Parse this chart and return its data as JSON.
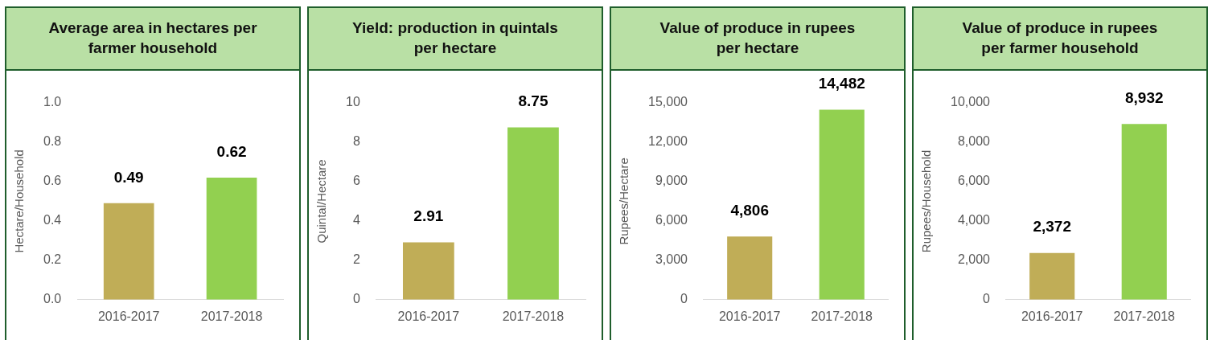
{
  "chart_data": [
    {
      "type": "bar",
      "title": "Average area in hectares per farmer household",
      "ylabel": "Hectare/Household",
      "categories": [
        "2016-2017",
        "2017-2018"
      ],
      "values": [
        0.49,
        0.62
      ],
      "value_labels": [
        "0.49",
        "0.62"
      ],
      "colors": [
        "#c0ad57",
        "#92d050"
      ],
      "ylim": [
        0,
        1
      ],
      "yticks": [
        {
          "value": 0,
          "label": "0.0"
        },
        {
          "value": 0.2,
          "label": "0.2"
        },
        {
          "value": 0.4,
          "label": "0.4"
        },
        {
          "value": 0.6,
          "label": "0.6"
        },
        {
          "value": 0.8,
          "label": "0.8"
        },
        {
          "value": 1,
          "label": "1.0"
        }
      ]
    },
    {
      "type": "bar",
      "title": "Yield: production in quintals per hectare",
      "ylabel": "Quintal/Hectare",
      "categories": [
        "2016-2017",
        "2017-2018"
      ],
      "values": [
        2.91,
        8.75
      ],
      "value_labels": [
        "2.91",
        "8.75"
      ],
      "colors": [
        "#c0ad57",
        "#92d050"
      ],
      "ylim": [
        0,
        10
      ],
      "yticks": [
        0,
        2,
        4,
        6,
        8,
        10
      ]
    },
    {
      "type": "bar",
      "title": "Value of produce in rupees per hectare",
      "ylabel": "Rupees/Hectare",
      "categories": [
        "2016-2017",
        "2017-2018"
      ],
      "values": [
        4806,
        14482
      ],
      "value_labels": [
        "4,806",
        "14,482"
      ],
      "colors": [
        "#c0ad57",
        "#92d050"
      ],
      "ylim": [
        0,
        15000
      ],
      "yticks": [
        0,
        {
          "value": 3000,
          "label": "3,000"
        },
        {
          "value": 6000,
          "label": "6,000"
        },
        {
          "value": 9000,
          "label": "9,000"
        },
        {
          "value": 12000,
          "label": "12,000"
        },
        {
          "value": 15000,
          "label": "15,000"
        }
      ]
    },
    {
      "type": "bar",
      "title": "Value of produce in rupees per farmer household",
      "ylabel": "Rupees/Household",
      "categories": [
        "2016-2017",
        "2017-2018"
      ],
      "values": [
        2372,
        8932
      ],
      "value_labels": [
        "2,372",
        "8,932"
      ],
      "colors": [
        "#c0ad57",
        "#92d050"
      ],
      "ylim": [
        0,
        10000
      ],
      "yticks": [
        0,
        {
          "value": 2000,
          "label": "2,000"
        },
        {
          "value": 4000,
          "label": "4,000"
        },
        {
          "value": 6000,
          "label": "6,000"
        },
        {
          "value": 8000,
          "label": "8,000"
        },
        {
          "value": 10000,
          "label": "10,000"
        }
      ]
    }
  ]
}
